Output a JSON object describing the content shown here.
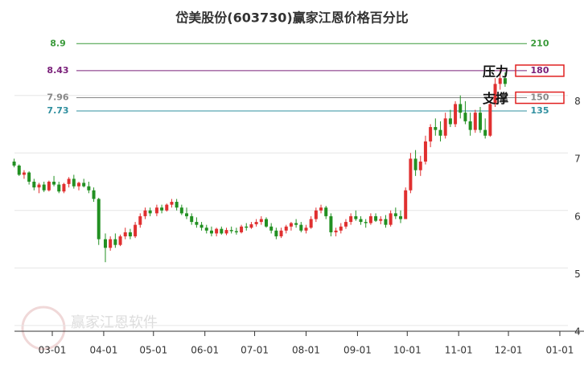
{
  "chart_data": {
    "type": "candlestick",
    "title": "岱美股份(603730)赢家江恩价格百分比",
    "ylim": [
      3.9,
      9.1
    ],
    "yticks": [
      4,
      5,
      6,
      7,
      8
    ],
    "xticks": [
      "03-01",
      "04-01",
      "05-01",
      "06-01",
      "07-01",
      "08-01",
      "09-01",
      "10-01",
      "11-01",
      "12-01",
      "01-01"
    ],
    "up_color": "#e03030",
    "down_color": "#229022",
    "levels": [
      {
        "price": 8.9,
        "percent": 210,
        "color": "#3a9a3a",
        "boxed": false
      },
      {
        "price": 8.43,
        "percent": 180,
        "color": "#7a207a",
        "boxed": true
      },
      {
        "price": 7.96,
        "percent": 150,
        "color": "#888888",
        "boxed": true
      },
      {
        "price": 7.73,
        "percent": 135,
        "color": "#2f8f9f",
        "boxed": false
      }
    ],
    "annotations": [
      "压力",
      "支撑"
    ],
    "watermark": "赢家江恩软件",
    "x": [
      "02-06",
      "02-09",
      "02-12",
      "02-15",
      "02-18",
      "02-21",
      "02-24",
      "02-27",
      "03-02",
      "03-05",
      "03-08",
      "03-11",
      "03-14",
      "03-17",
      "03-20",
      "03-23",
      "03-26",
      "03-29",
      "04-02",
      "04-05",
      "04-08",
      "04-11",
      "04-14",
      "04-17",
      "04-20",
      "04-23",
      "04-26",
      "04-29",
      "05-03",
      "05-06",
      "05-09",
      "05-12",
      "05-15",
      "05-18",
      "05-21",
      "05-24",
      "05-27",
      "05-30",
      "06-02",
      "06-05",
      "06-08",
      "06-11",
      "06-14",
      "06-17",
      "06-20",
      "06-23",
      "06-26",
      "06-29",
      "07-02",
      "07-05",
      "07-08",
      "07-11",
      "07-14",
      "07-17",
      "07-20",
      "07-23",
      "07-26",
      "07-29",
      "08-01",
      "08-04",
      "08-07",
      "08-10",
      "08-13",
      "08-16",
      "08-19",
      "08-22",
      "08-25",
      "08-28",
      "08-31",
      "09-03",
      "09-06",
      "09-09",
      "09-12",
      "09-15",
      "09-18",
      "09-21",
      "09-24",
      "09-27",
      "09-30",
      "10-03",
      "10-06",
      "10-09",
      "10-12",
      "10-15",
      "10-18",
      "10-21",
      "10-24",
      "10-27",
      "10-30",
      "11-02",
      "11-05",
      "11-08",
      "11-11",
      "11-14",
      "11-17",
      "11-20",
      "11-23",
      "11-26",
      "11-29"
    ],
    "open": [
      6.85,
      6.78,
      6.62,
      6.66,
      6.5,
      6.4,
      6.45,
      6.35,
      6.5,
      6.45,
      6.33,
      6.46,
      6.55,
      6.42,
      6.48,
      6.42,
      6.35,
      6.2,
      5.5,
      5.35,
      5.5,
      5.4,
      5.55,
      5.62,
      5.55,
      5.75,
      5.9,
      6.0,
      5.95,
      6.05,
      6.0,
      6.1,
      6.15,
      6.05,
      5.95,
      5.9,
      5.8,
      5.75,
      5.7,
      5.65,
      5.6,
      5.68,
      5.6,
      5.66,
      5.64,
      5.62,
      5.72,
      5.7,
      5.76,
      5.8,
      5.85,
      5.72,
      5.65,
      5.55,
      5.65,
      5.72,
      5.78,
      5.75,
      5.65,
      5.7,
      5.85,
      6.0,
      6.05,
      5.9,
      5.62,
      5.65,
      5.72,
      5.8,
      5.9,
      5.85,
      5.8,
      5.78,
      5.9,
      5.82,
      5.85,
      5.75,
      5.95,
      5.9,
      5.85,
      6.35,
      6.9,
      6.7,
      6.85,
      7.2,
      7.45,
      7.4,
      7.3,
      7.6,
      7.5,
      7.85,
      7.7,
      7.55,
      7.4,
      7.7,
      7.4,
      7.3,
      7.85,
      8.2,
      8.3
    ],
    "high": [
      6.9,
      6.8,
      6.7,
      6.68,
      6.55,
      6.48,
      6.5,
      6.52,
      6.6,
      6.5,
      6.48,
      6.58,
      6.62,
      6.5,
      6.55,
      6.5,
      6.4,
      6.22,
      5.6,
      5.55,
      5.6,
      5.58,
      5.7,
      5.68,
      5.8,
      5.95,
      6.05,
      6.05,
      6.1,
      6.1,
      6.12,
      6.2,
      6.2,
      6.1,
      6.05,
      5.95,
      5.88,
      5.8,
      5.75,
      5.72,
      5.7,
      5.72,
      5.7,
      5.72,
      5.7,
      5.75,
      5.78,
      5.8,
      5.85,
      5.9,
      5.88,
      5.78,
      5.7,
      5.7,
      5.75,
      5.8,
      5.85,
      5.8,
      5.75,
      5.9,
      6.05,
      6.1,
      6.08,
      5.95,
      5.7,
      5.78,
      5.85,
      5.95,
      6.0,
      5.9,
      5.85,
      5.95,
      5.95,
      5.9,
      5.92,
      6.0,
      6.05,
      6.0,
      6.4,
      7.0,
      7.05,
      6.95,
      7.3,
      7.5,
      7.6,
      7.55,
      7.7,
      7.75,
      7.9,
      8.0,
      7.9,
      7.7,
      7.75,
      7.8,
      7.6,
      7.9,
      8.3,
      8.45,
      8.4
    ],
    "low": [
      6.75,
      6.6,
      6.55,
      6.45,
      6.35,
      6.3,
      6.32,
      6.33,
      6.42,
      6.3,
      6.3,
      6.4,
      6.38,
      6.35,
      6.4,
      6.3,
      6.15,
      5.4,
      5.1,
      5.3,
      5.35,
      5.38,
      5.5,
      5.5,
      5.52,
      5.7,
      5.85,
      5.9,
      5.9,
      5.95,
      5.98,
      6.05,
      6.0,
      5.92,
      5.85,
      5.75,
      5.7,
      5.65,
      5.6,
      5.55,
      5.55,
      5.58,
      5.57,
      5.6,
      5.58,
      5.6,
      5.65,
      5.68,
      5.72,
      5.75,
      5.7,
      5.6,
      5.5,
      5.52,
      5.6,
      5.65,
      5.7,
      5.62,
      5.6,
      5.68,
      5.8,
      5.95,
      5.85,
      5.55,
      5.55,
      5.6,
      5.68,
      5.75,
      5.82,
      5.75,
      5.7,
      5.75,
      5.8,
      5.76,
      5.7,
      5.72,
      5.85,
      5.78,
      5.85,
      6.3,
      6.6,
      6.6,
      6.8,
      7.1,
      7.3,
      7.2,
      7.25,
      7.45,
      7.45,
      7.6,
      7.5,
      7.3,
      7.35,
      7.35,
      7.25,
      7.28,
      7.8,
      8.1,
      8.15
    ],
    "close": [
      6.78,
      6.62,
      6.66,
      6.5,
      6.4,
      6.45,
      6.35,
      6.5,
      6.45,
      6.33,
      6.46,
      6.55,
      6.42,
      6.48,
      6.42,
      6.35,
      6.2,
      5.5,
      5.35,
      5.5,
      5.4,
      5.55,
      5.62,
      5.55,
      5.75,
      5.9,
      6.0,
      5.95,
      6.05,
      6.0,
      6.1,
      6.15,
      6.05,
      5.95,
      5.9,
      5.8,
      5.75,
      5.7,
      5.65,
      5.6,
      5.68,
      5.6,
      5.66,
      5.64,
      5.62,
      5.72,
      5.7,
      5.76,
      5.8,
      5.85,
      5.72,
      5.65,
      5.55,
      5.65,
      5.72,
      5.78,
      5.75,
      5.65,
      5.7,
      5.85,
      6.0,
      6.05,
      5.9,
      5.62,
      5.65,
      5.72,
      5.8,
      5.9,
      5.85,
      5.8,
      5.78,
      5.9,
      5.82,
      5.85,
      5.75,
      5.95,
      5.9,
      5.85,
      6.35,
      6.9,
      6.7,
      6.85,
      7.2,
      7.45,
      7.4,
      7.3,
      7.6,
      7.5,
      7.85,
      7.7,
      7.55,
      7.4,
      7.7,
      7.4,
      7.3,
      7.85,
      8.2,
      8.3,
      8.2
    ]
  }
}
